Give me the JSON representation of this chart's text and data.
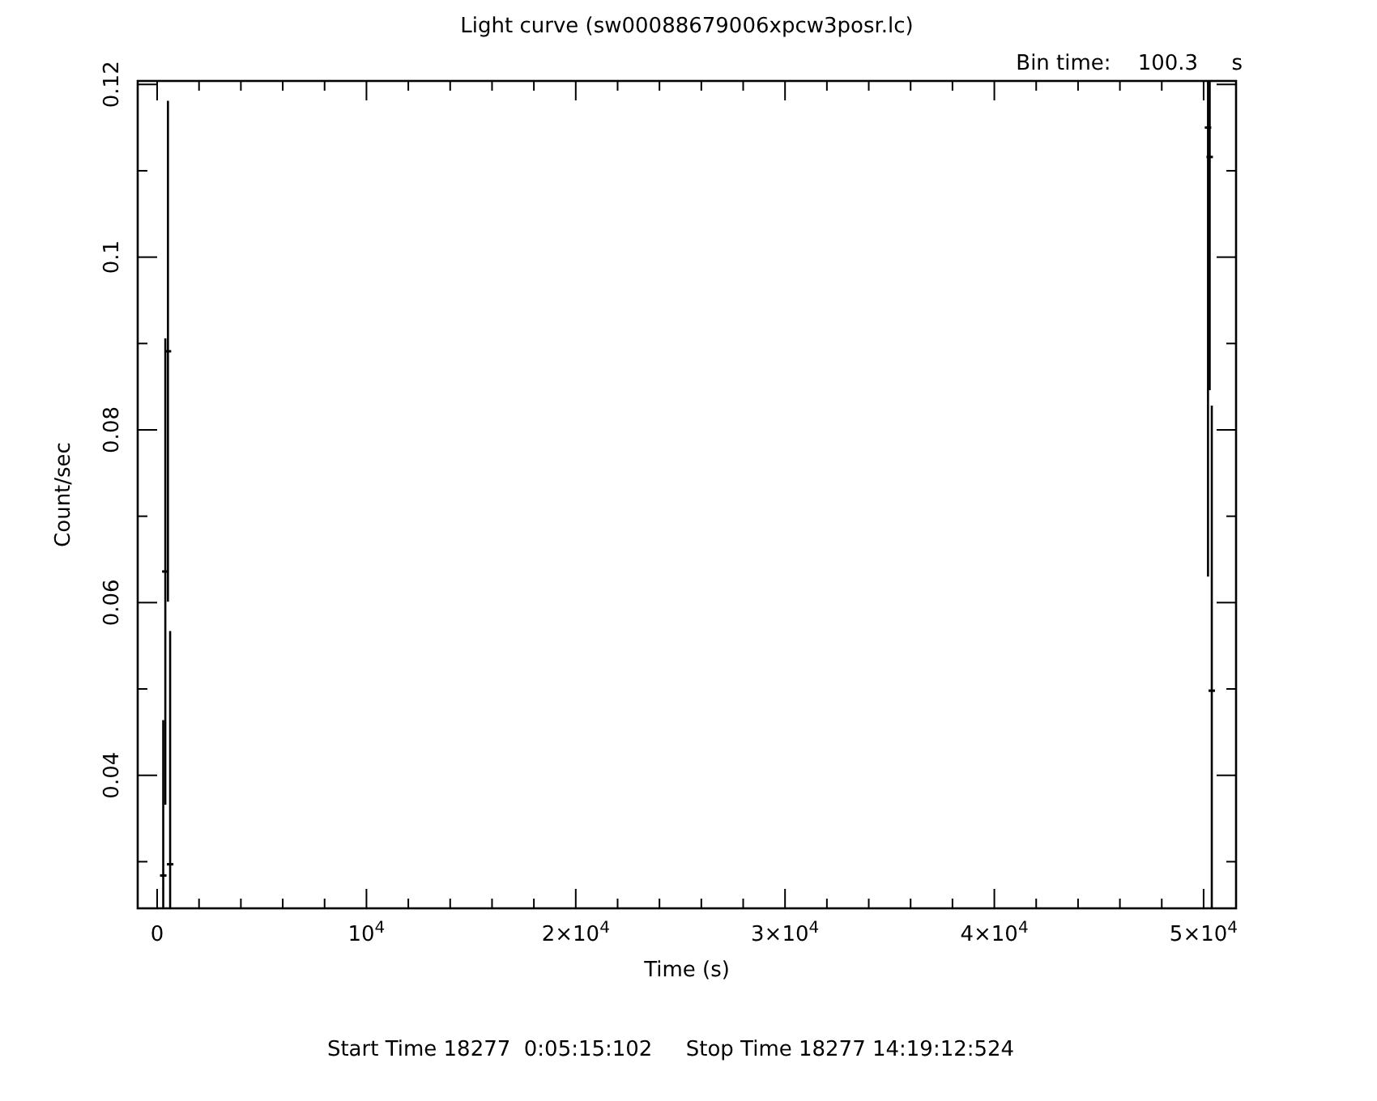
{
  "chart_data": {
    "type": "scatter",
    "title": "Light curve (sw00088679006xpcw3posr.lc)",
    "xlabel": "Time (s)",
    "ylabel": "Count/sec",
    "annotations": [
      "Bin time:    100.3     s",
      "Start Time 18277  0:05:15:102     Stop Time 18277 14:19:12:524"
    ],
    "series": [
      {
        "color": "#000000",
        "x": [
          290,
          390,
          515,
          620,
          50210,
          50290,
          50390
        ],
        "values": [
          0.0284,
          0.0636,
          0.0891,
          0.0297,
          0.115,
          0.1116,
          0.0498
        ],
        "errors": [
          0.018,
          0.027,
          0.029,
          0.027,
          0.052,
          0.027,
          0.033
        ]
      }
    ],
    "xlim": [
      -930,
      51550
    ],
    "ylim": [
      0.0246,
      0.1204
    ],
    "xticks": [
      0,
      {
        "value": 2000,
        "label": null
      },
      {
        "value": 4000,
        "label": null
      },
      {
        "value": 6000,
        "label": null
      },
      {
        "value": 8000,
        "label": null
      },
      {
        "value": 10000,
        "label": "10$^{4}$"
      },
      {
        "value": 12000,
        "label": null
      },
      {
        "value": 14000,
        "label": null
      },
      {
        "value": 16000,
        "label": null
      },
      {
        "value": 18000,
        "label": null
      },
      {
        "value": 20000,
        "label": "2×10$^{4}$"
      },
      {
        "value": 22000,
        "label": null
      },
      {
        "value": 24000,
        "label": null
      },
      {
        "value": 26000,
        "label": null
      },
      {
        "value": 28000,
        "label": null
      },
      {
        "value": 30000,
        "label": "3×10$^{4}$"
      },
      {
        "value": 32000,
        "label": null
      },
      {
        "value": 34000,
        "label": null
      },
      {
        "value": 36000,
        "label": null
      },
      {
        "value": 38000,
        "label": null
      },
      {
        "value": 40000,
        "label": "4×10$^{4}$"
      },
      {
        "value": 42000,
        "label": null
      },
      {
        "value": 44000,
        "label": null
      },
      {
        "value": 46000,
        "label": null
      },
      {
        "value": 48000,
        "label": null
      },
      {
        "value": 50000,
        "label": "5×10$^{4}$"
      }
    ],
    "yticks": [
      {
        "value": 0.03,
        "label": null
      },
      0.04,
      {
        "value": 0.05,
        "label": null
      },
      0.06,
      {
        "value": 0.07,
        "label": null
      },
      0.08,
      {
        "value": 0.09,
        "label": null
      },
      0.1,
      {
        "value": 0.11,
        "label": null
      },
      0.12
    ],
    "grid": false
  }
}
